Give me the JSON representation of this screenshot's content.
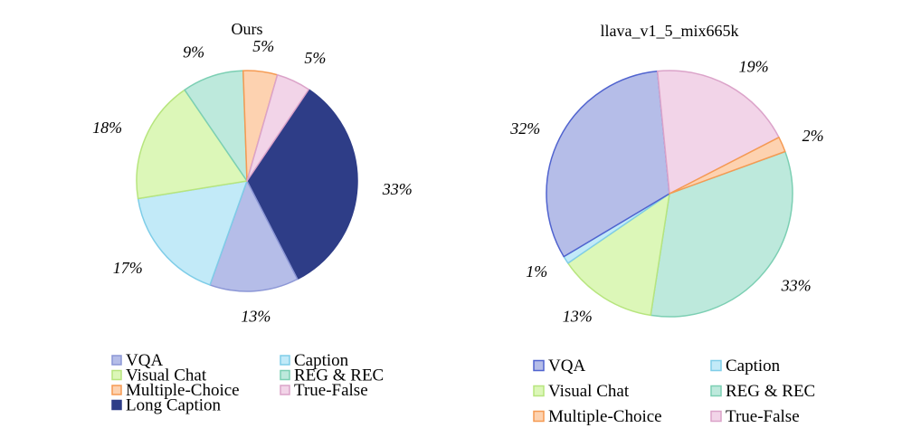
{
  "chart_data": [
    {
      "type": "pie",
      "title": "Ours",
      "slices": [
        {
          "label": "Long Caption",
          "value": 33,
          "display": "33%",
          "fill": "#2e3d87",
          "stroke": "#2e3d87"
        },
        {
          "label": "VQA",
          "value": 13,
          "display": "13%",
          "fill": "#b5bde8",
          "stroke": "#8c97d6"
        },
        {
          "label": "Caption",
          "value": 17,
          "display": "17%",
          "fill": "#c2eaf8",
          "stroke": "#7fcde8"
        },
        {
          "label": "Visual Chat",
          "value": 18,
          "display": "18%",
          "fill": "#dcf7b8",
          "stroke": "#b7e57e"
        },
        {
          "label": "REG & REC",
          "value": 9,
          "display": "9%",
          "fill": "#bde9dc",
          "stroke": "#7ccfb3"
        },
        {
          "label": "Multiple-Choice",
          "value": 5,
          "display": "5%",
          "fill": "#fdd2b0",
          "stroke": "#f59a52"
        },
        {
          "label": "True-False",
          "value": 5,
          "display": "5%",
          "fill": "#f2d4e8",
          "stroke": "#dba3c9"
        }
      ],
      "legend": [
        "VQA",
        "Caption",
        "Visual Chat",
        "REG & REC",
        "Multiple-Choice",
        "True-False",
        "Long Caption"
      ]
    },
    {
      "type": "pie",
      "title": "llava_v1_5_mix665k",
      "slices": [
        {
          "label": "REG & REC",
          "value": 33,
          "display": "33%",
          "fill": "#bde9dc",
          "stroke": "#7ccfb3"
        },
        {
          "label": "Visual Chat",
          "value": 13,
          "display": "13%",
          "fill": "#dcf7b8",
          "stroke": "#b7e57e"
        },
        {
          "label": "Caption",
          "value": 1,
          "display": "1%",
          "fill": "#c2eaf8",
          "stroke": "#7fcde8"
        },
        {
          "label": "VQA",
          "value": 32,
          "display": "32%",
          "fill": "#b5bde8",
          "stroke": "#5063cf"
        },
        {
          "label": "True-False",
          "value": 19,
          "display": "19%",
          "fill": "#f2d4e8",
          "stroke": "#dba3c9"
        },
        {
          "label": "Multiple-Choice",
          "value": 2,
          "display": "2%",
          "fill": "#fdd2b0",
          "stroke": "#f59a52"
        }
      ],
      "legend": [
        "VQA",
        "Caption",
        "Visual Chat",
        "REG & REC",
        "Multiple-Choice",
        "True-False"
      ]
    }
  ]
}
